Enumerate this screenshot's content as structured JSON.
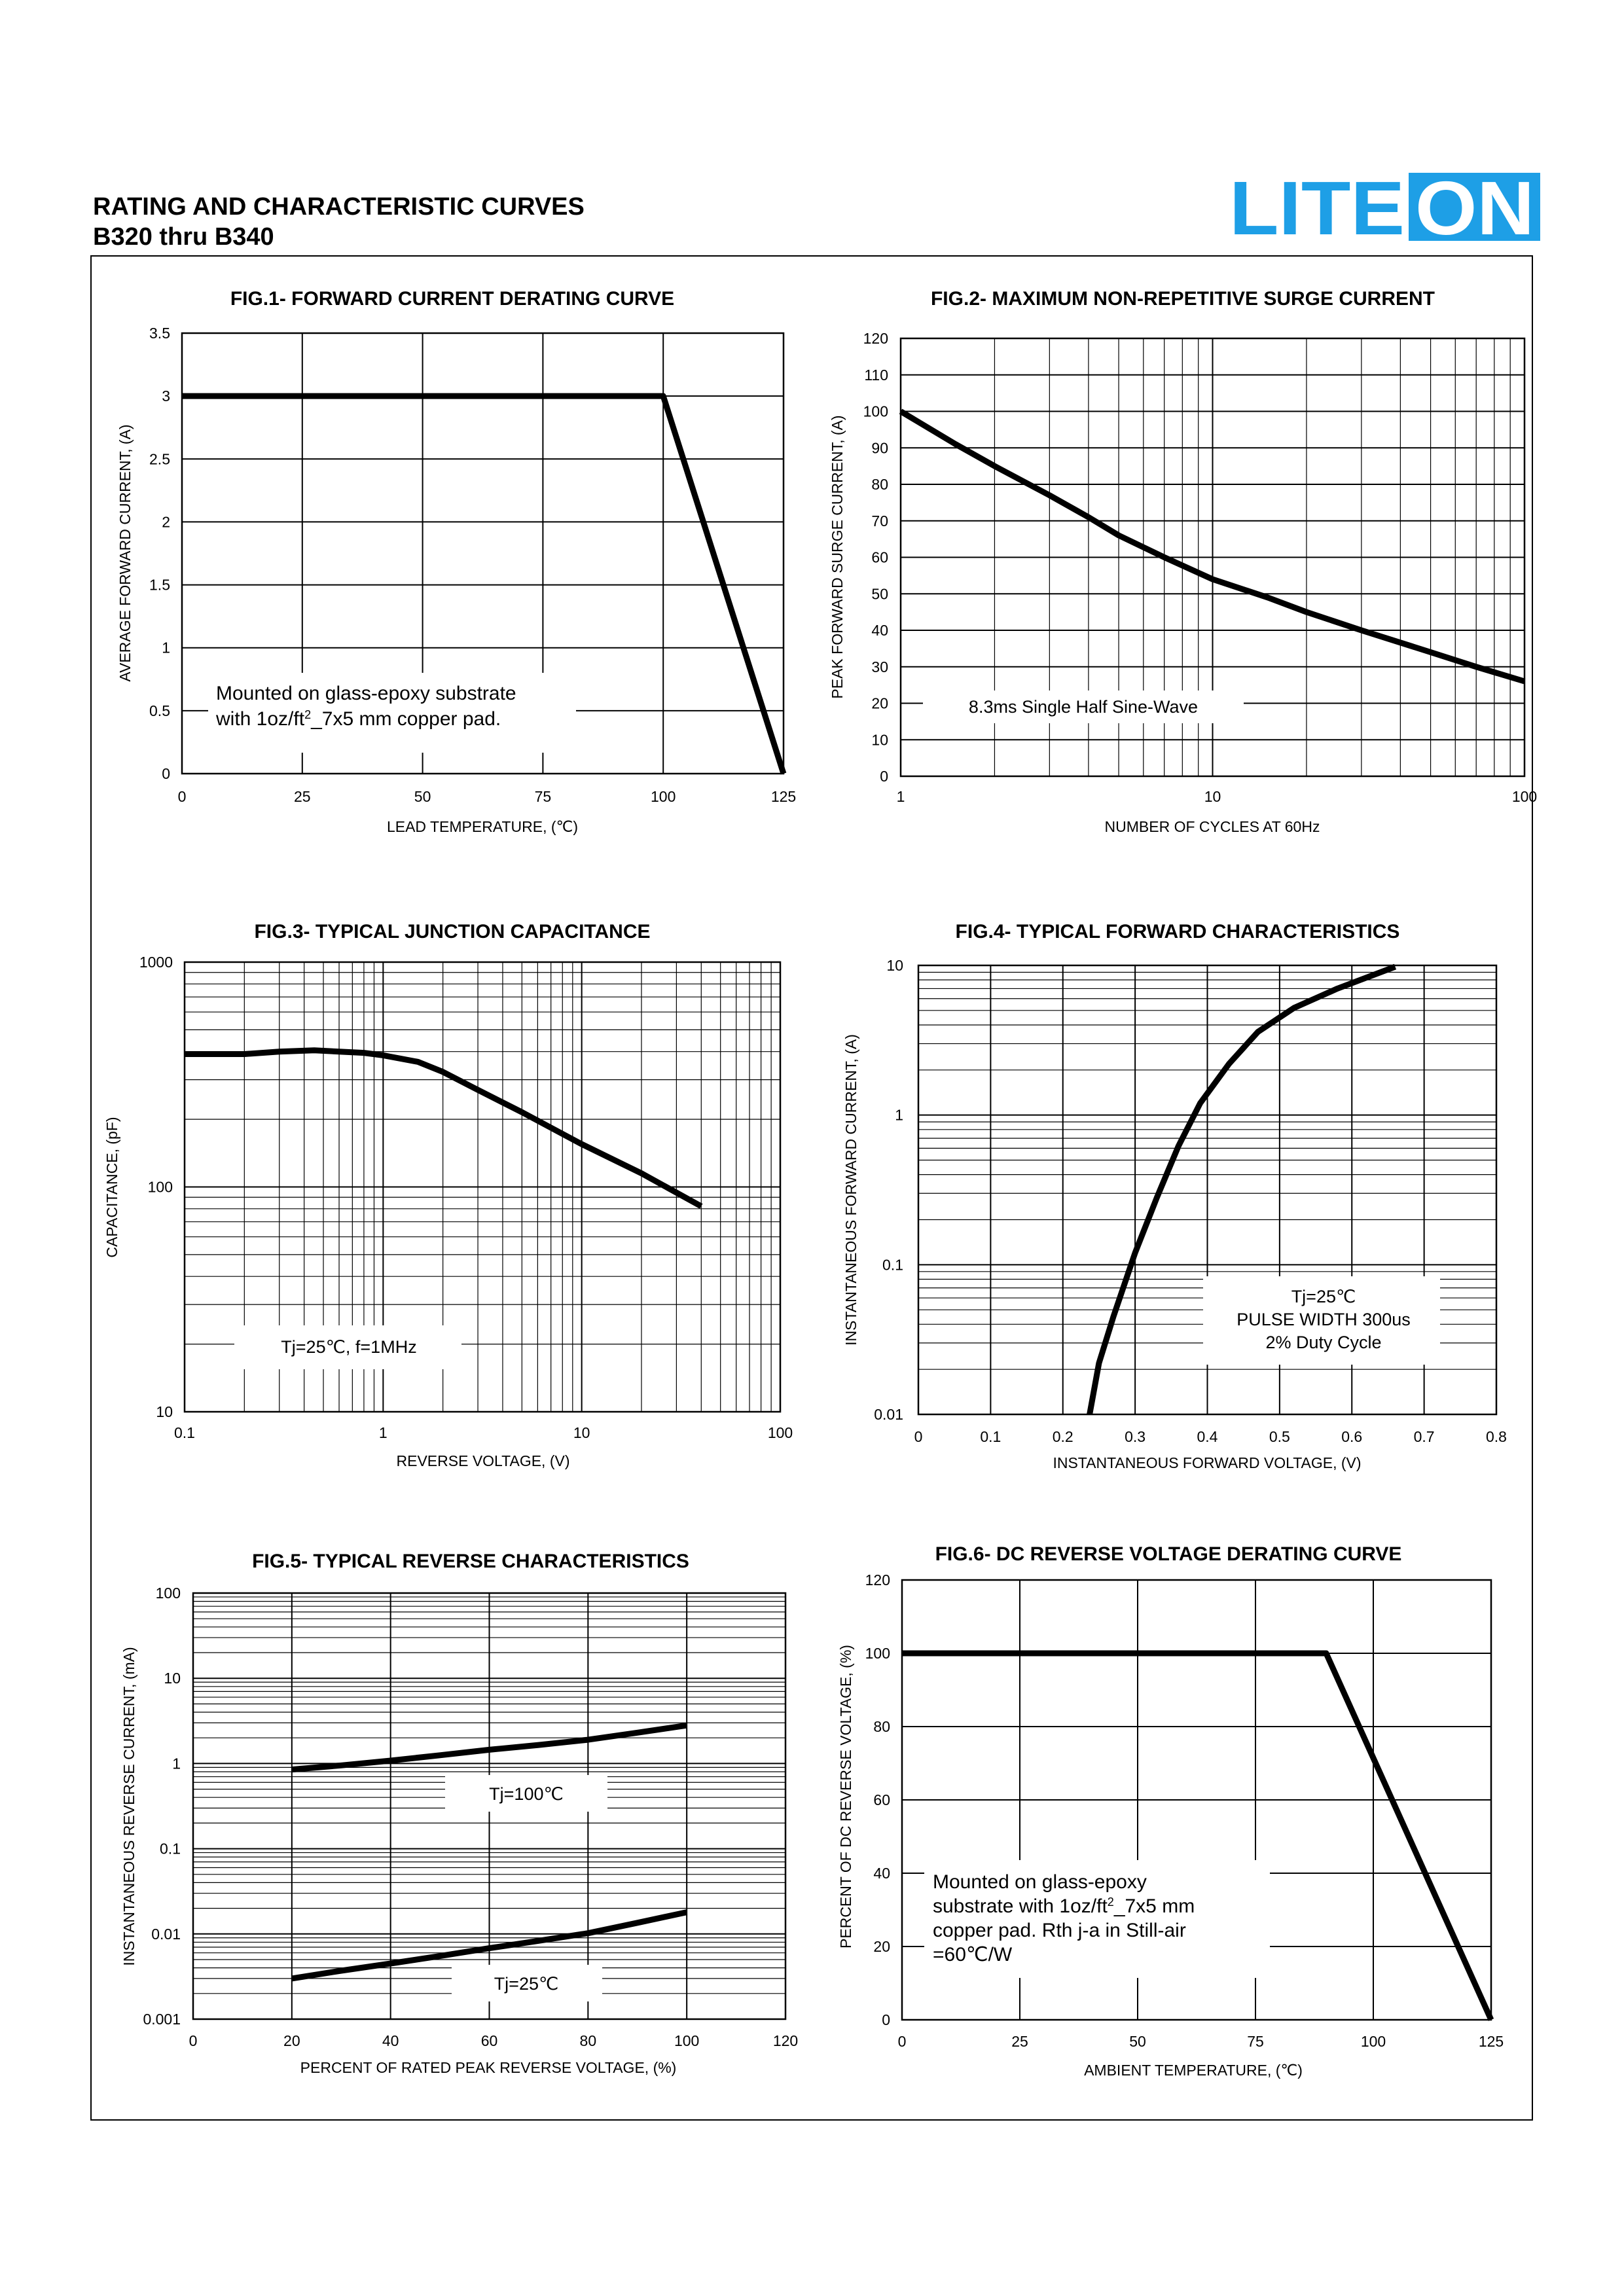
{
  "header": {
    "title": "RATING AND CHARACTERISTIC CURVES",
    "subtitle": "B320 thru B340",
    "brand": "LITEON",
    "brand_color": "#1E9FE6"
  },
  "chart_data": [
    {
      "id": "fig1",
      "type": "line",
      "title": "FIG.1- FORWARD CURRENT DERATING CURVE",
      "xlabel": "LEAD TEMPERATURE, (℃)",
      "ylabel": "AVERAGE FORWARD CURRENT, (A)",
      "xscale": "linear",
      "yscale": "linear",
      "xlim": [
        0,
        125
      ],
      "ylim": [
        0,
        3.5
      ],
      "xticks": [
        0,
        25,
        50,
        75,
        100,
        125
      ],
      "yticks": [
        0,
        0.5,
        1,
        1.5,
        2,
        2.5,
        3,
        3.5
      ],
      "xtick_labels": [
        "0",
        "25",
        "50",
        "75",
        "100",
        "125"
      ],
      "ytick_labels": [
        "0",
        "0.5",
        "1",
        "1.5",
        "2",
        "2.5",
        "3",
        "3.5"
      ],
      "grid": true,
      "annotation": [
        "Mounted on glass-epoxy substrate",
        "with 1oz/ft",
        "2",
        "_7x5 mm copper pad."
      ],
      "series": [
        {
          "x": [
            0,
            100,
            125
          ],
          "y": [
            3,
            3,
            0
          ]
        }
      ]
    },
    {
      "id": "fig2",
      "type": "line",
      "title": "FIG.2- MAXIMUM NON-REPETITIVE SURGE CURRENT",
      "xlabel": "NUMBER OF CYCLES AT 60Hz",
      "ylabel": "PEAK FORWARD SURGE CURRENT, (A)",
      "xscale": "log",
      "yscale": "linear",
      "xlim": [
        1,
        100
      ],
      "ylim": [
        0,
        120
      ],
      "xticks": [
        1,
        10,
        100
      ],
      "yticks": [
        0,
        10,
        20,
        30,
        40,
        50,
        60,
        70,
        80,
        90,
        100,
        110,
        120
      ],
      "xtick_labels": [
        "1",
        "10",
        "100"
      ],
      "ytick_labels": [
        "0",
        "10",
        "20",
        "30",
        "40",
        "50",
        "60",
        "70",
        "80",
        "90",
        "100",
        "110",
        "120"
      ],
      "grid": true,
      "annotation": [
        "8.3ms Single Half Sine-Wave"
      ],
      "series": [
        {
          "x": [
            1,
            1.5,
            2,
            3,
            4,
            5,
            7,
            10,
            15,
            20,
            30,
            50,
            70,
            100
          ],
          "y": [
            100,
            91,
            85,
            77,
            71,
            66,
            60,
            54,
            49,
            45,
            40,
            34,
            30,
            26
          ]
        }
      ]
    },
    {
      "id": "fig3",
      "type": "line",
      "title": "FIG.3- TYPICAL JUNCTION CAPACITANCE",
      "xlabel": "REVERSE VOLTAGE, (V)",
      "ylabel": "CAPACITANCE, (pF)",
      "xscale": "log",
      "yscale": "log",
      "xlim": [
        0.1,
        100
      ],
      "ylim": [
        10,
        1000
      ],
      "xticks": [
        0.1,
        1,
        10,
        100
      ],
      "yticks": [
        10,
        100,
        1000
      ],
      "xtick_labels": [
        "0.1",
        "1",
        "10",
        "100"
      ],
      "ytick_labels": [
        "10",
        "100",
        "1000"
      ],
      "grid": true,
      "annotation": [
        "Tj=25℃, f=1MHz"
      ],
      "series": [
        {
          "x": [
            0.1,
            0.2,
            0.3,
            0.45,
            0.6,
            0.8,
            1,
            1.5,
            2,
            3,
            5,
            10,
            20,
            40
          ],
          "y": [
            390,
            390,
            400,
            405,
            400,
            395,
            385,
            360,
            325,
            270,
            215,
            155,
            115,
            82
          ]
        }
      ]
    },
    {
      "id": "fig4",
      "type": "line",
      "title": "FIG.4- TYPICAL FORWARD CHARACTERISTICS",
      "xlabel": "INSTANTANEOUS FORWARD VOLTAGE, (V)",
      "ylabel": "INSTANTANEOUS  FORWARD CURRENT, (A)",
      "xscale": "linear",
      "yscale": "log",
      "xlim": [
        0,
        0.8
      ],
      "ylim": [
        0.01,
        10
      ],
      "xticks": [
        0,
        0.1,
        0.2,
        0.3,
        0.4,
        0.5,
        0.6,
        0.7,
        0.8
      ],
      "yticks": [
        0.01,
        0.1,
        1,
        10
      ],
      "xtick_labels": [
        "0",
        "0.1",
        "0.2",
        "0.3",
        "0.4",
        "0.5",
        "0.6",
        "0.7",
        "0.8"
      ],
      "ytick_labels": [
        "0.01",
        "0.1",
        "1",
        "10"
      ],
      "grid": true,
      "annotation": [
        "Tj=25℃",
        "PULSE WIDTH 300us",
        "2% Duty Cycle"
      ],
      "series": [
        {
          "x": [
            0.237,
            0.25,
            0.27,
            0.3,
            0.33,
            0.36,
            0.39,
            0.43,
            0.47,
            0.52,
            0.58,
            0.66
          ],
          "y": [
            0.01,
            0.022,
            0.045,
            0.12,
            0.28,
            0.62,
            1.2,
            2.2,
            3.6,
            5.2,
            7.0,
            9.8
          ]
        }
      ]
    },
    {
      "id": "fig5",
      "type": "line",
      "title": "FIG.5- TYPICAL REVERSE CHARACTERISTICS",
      "xlabel": "PERCENT  OF  RATED  PEAK  REVERSE  VOLTAGE, (%)",
      "ylabel": "INSTANTANEOUS REVERSE CURRENT, (mA)",
      "xscale": "linear",
      "yscale": "log",
      "xlim": [
        0,
        120
      ],
      "ylim": [
        0.001,
        100
      ],
      "xticks": [
        0,
        20,
        40,
        60,
        80,
        100,
        120
      ],
      "yticks": [
        0.001,
        0.01,
        0.1,
        1,
        10,
        100
      ],
      "xtick_labels": [
        "0",
        "20",
        "40",
        "60",
        "80",
        "100",
        "120"
      ],
      "ytick_labels": [
        "0.001",
        "0.01",
        "0.1",
        "1",
        "10",
        "100"
      ],
      "grid": true,
      "annotation": [
        "Tj=100℃",
        "Tj=25℃"
      ],
      "series": [
        {
          "x": [
            20,
            30,
            40,
            50,
            60,
            70,
            80,
            90,
            100
          ],
          "y": [
            0.85,
            0.95,
            1.08,
            1.25,
            1.45,
            1.65,
            1.9,
            2.3,
            2.8
          ]
        },
        {
          "x": [
            20,
            30,
            40,
            50,
            60,
            70,
            80,
            90,
            100
          ],
          "y": [
            0.003,
            0.0037,
            0.0045,
            0.0055,
            0.0068,
            0.0083,
            0.0102,
            0.0135,
            0.018
          ]
        }
      ]
    },
    {
      "id": "fig6",
      "type": "line",
      "title": "FIG.6- DC REVERSE VOLTAGE DERATING CURVE",
      "xlabel": "AMBIENT  TEMPERATURE, (℃)",
      "ylabel": "PERCENT OF DC REVERSE VOLTAGE, (%)",
      "xscale": "linear",
      "yscale": "linear",
      "xlim": [
        0,
        125
      ],
      "ylim": [
        0,
        120
      ],
      "xticks": [
        0,
        25,
        50,
        75,
        100,
        125
      ],
      "yticks": [
        0,
        20,
        40,
        60,
        80,
        100,
        120
      ],
      "xtick_labels": [
        "0",
        "25",
        "50",
        "75",
        "100",
        "125"
      ],
      "ytick_labels": [
        "0",
        "20",
        "40",
        "60",
        "80",
        "100",
        "120"
      ],
      "grid": true,
      "annotation": [
        "Mounted on glass-epoxy",
        "substrate with 1oz/ft",
        "2",
        "_7x5 mm",
        "copper pad. Rth j-a in Still-air",
        "=60℃/W"
      ],
      "series": [
        {
          "x": [
            0,
            90,
            125
          ],
          "y": [
            100,
            100,
            0
          ]
        }
      ]
    }
  ]
}
